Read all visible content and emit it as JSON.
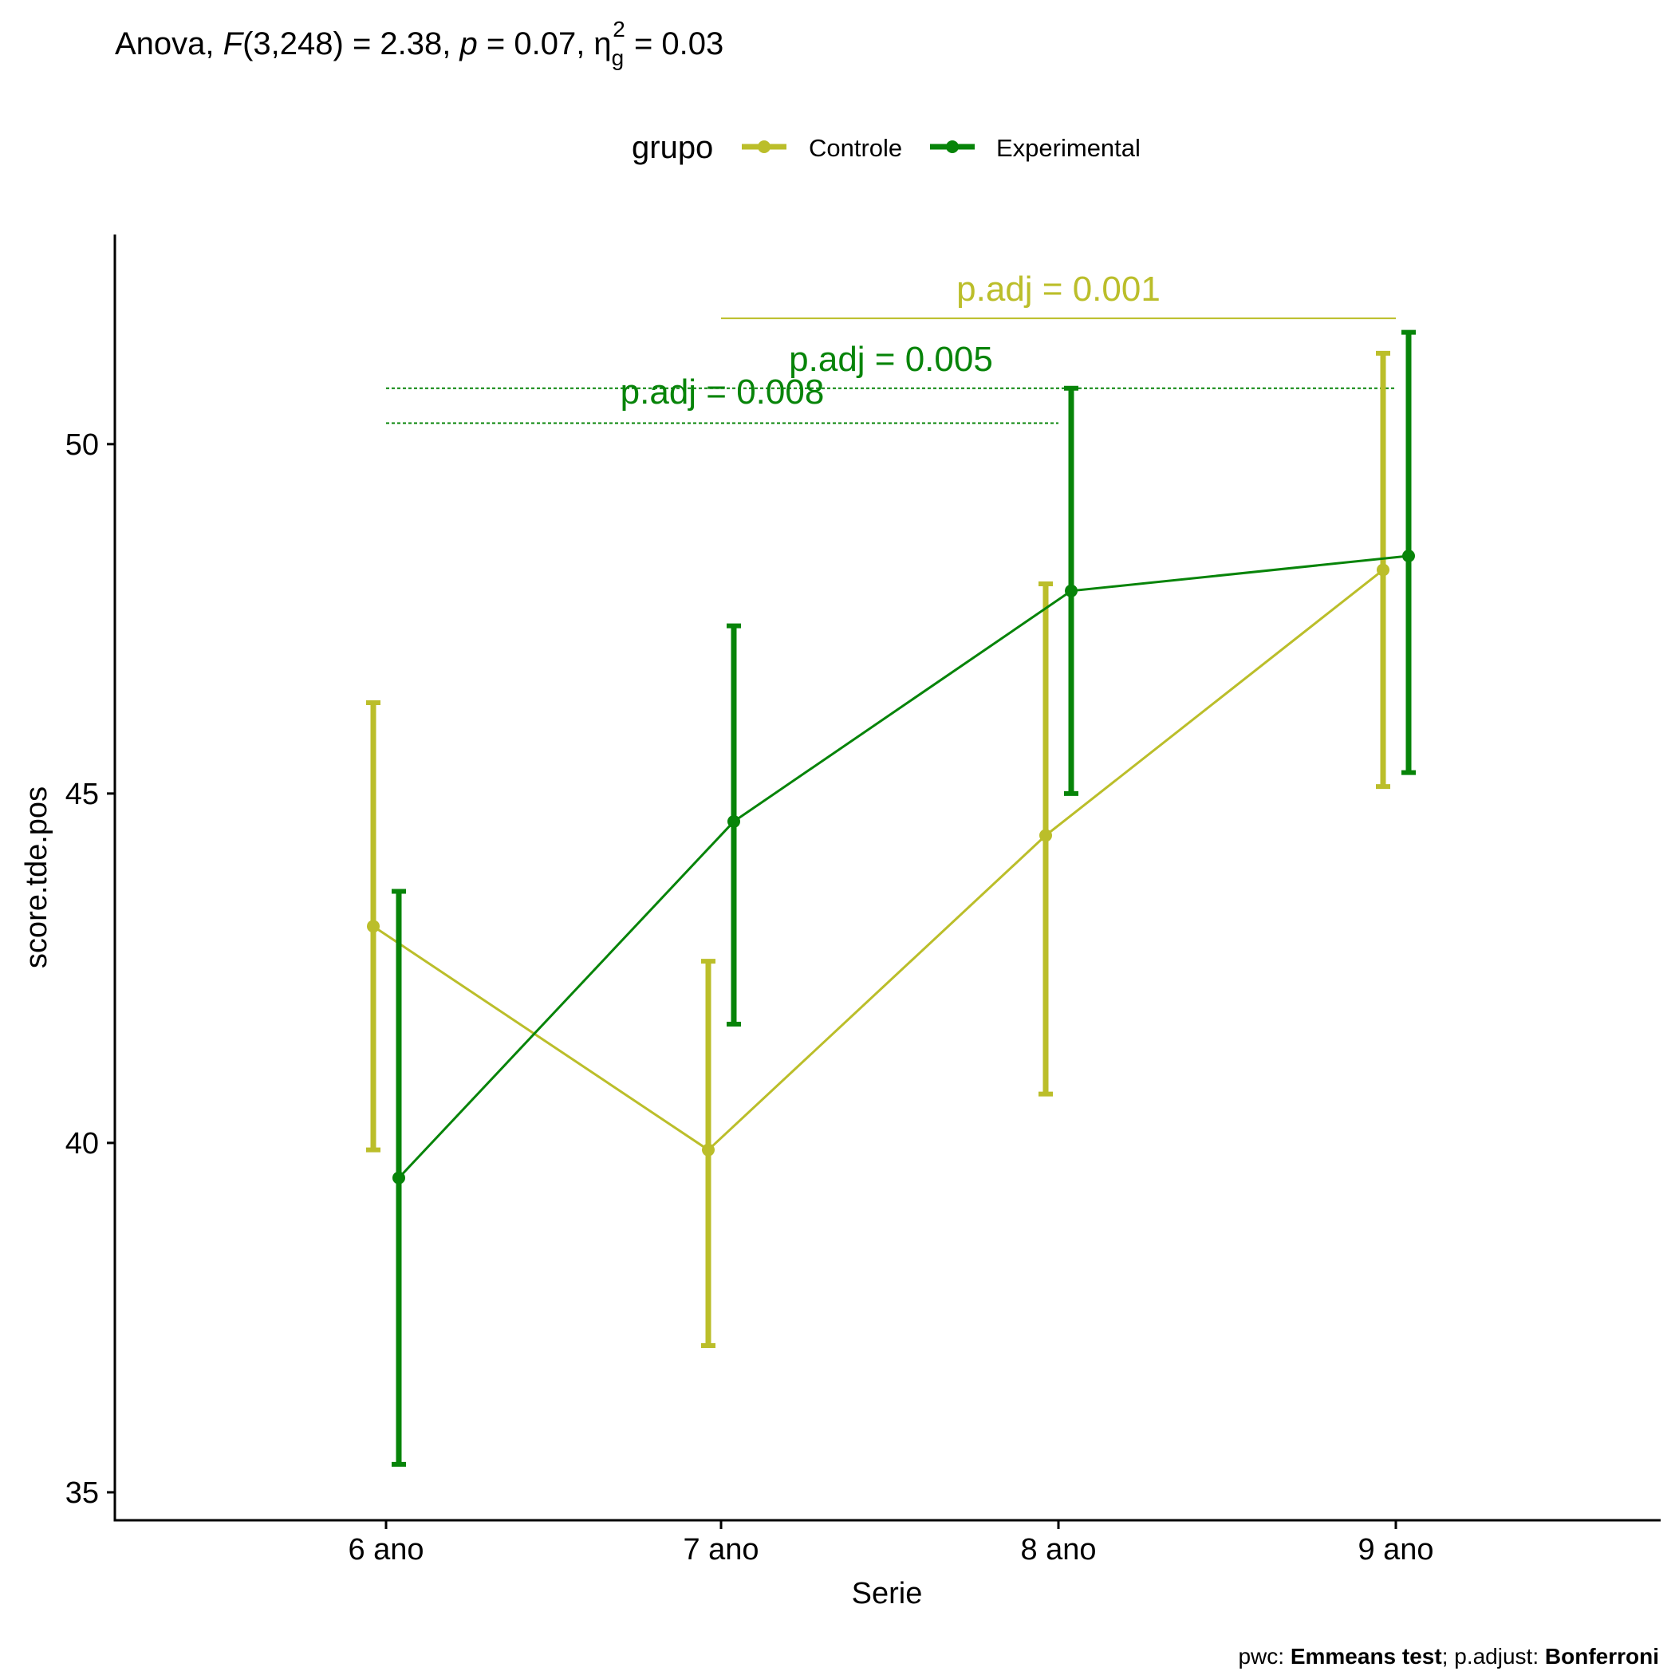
{
  "chart_data": {
    "type": "line",
    "title_prefix": "Anova, ",
    "title_F": "F",
    "title_df": "(3,248) = 2.38, ",
    "title_p": "p",
    "title_p_val": " = 0.07, ",
    "title_eta": "η",
    "title_eta_sub": "g",
    "title_eta_sup": "2",
    "title_eta_val": " = 0.03",
    "legend_title": "grupo",
    "xlabel": "Serie",
    "ylabel": "score.tde.pos",
    "categories": [
      "6 ano",
      "7 ano",
      "8 ano",
      "9 ano"
    ],
    "ylim": [
      34.6,
      53.0
    ],
    "yticks": [
      35,
      40,
      45,
      50
    ],
    "grid": false,
    "legend_position": "top",
    "series": [
      {
        "name": "Controle",
        "color": "#BBBE2A",
        "means": [
          43.1,
          39.9,
          44.4,
          48.2
        ],
        "lower": [
          39.9,
          37.1,
          40.7,
          45.1
        ],
        "upper": [
          46.3,
          42.6,
          48.0,
          51.3
        ]
      },
      {
        "name": "Experimental",
        "color": "#078409",
        "means": [
          39.5,
          44.6,
          47.9,
          48.4
        ],
        "lower": [
          35.4,
          41.7,
          45.0,
          45.3
        ],
        "upper": [
          43.6,
          47.4,
          50.8,
          51.6
        ]
      }
    ],
    "comparisons": [
      {
        "label": "p.adj = 0.001",
        "from": 1,
        "to": 3,
        "y": 51.8,
        "color": "#BBBE2A",
        "dashed": false,
        "label_y": 52.05
      },
      {
        "label": "p.adj = 0.005",
        "from": 0,
        "to": 3,
        "y": 50.8,
        "color": "#078409",
        "dashed": true,
        "label_y": 51.05
      },
      {
        "label": "p.adj = 0.008",
        "from": 0,
        "to": 2,
        "y": 50.3,
        "color": "#078409",
        "dashed": true,
        "label_y": 50.58
      }
    ],
    "caption_pwc": "pwc: ",
    "caption_test": "Emmeans test",
    "caption_sep": "; p.adjust: ",
    "caption_method": "Bonferroni"
  }
}
